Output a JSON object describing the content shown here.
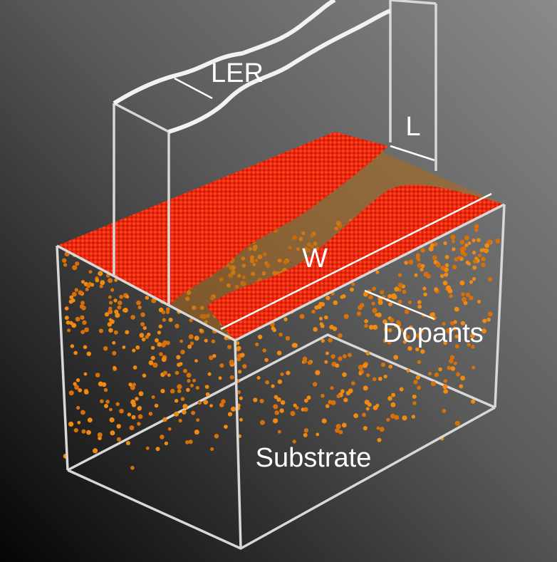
{
  "labels": {
    "ler": "LER",
    "length": "L",
    "width": "W",
    "dopants": "Dopants",
    "substrate": "Substrate"
  }
}
